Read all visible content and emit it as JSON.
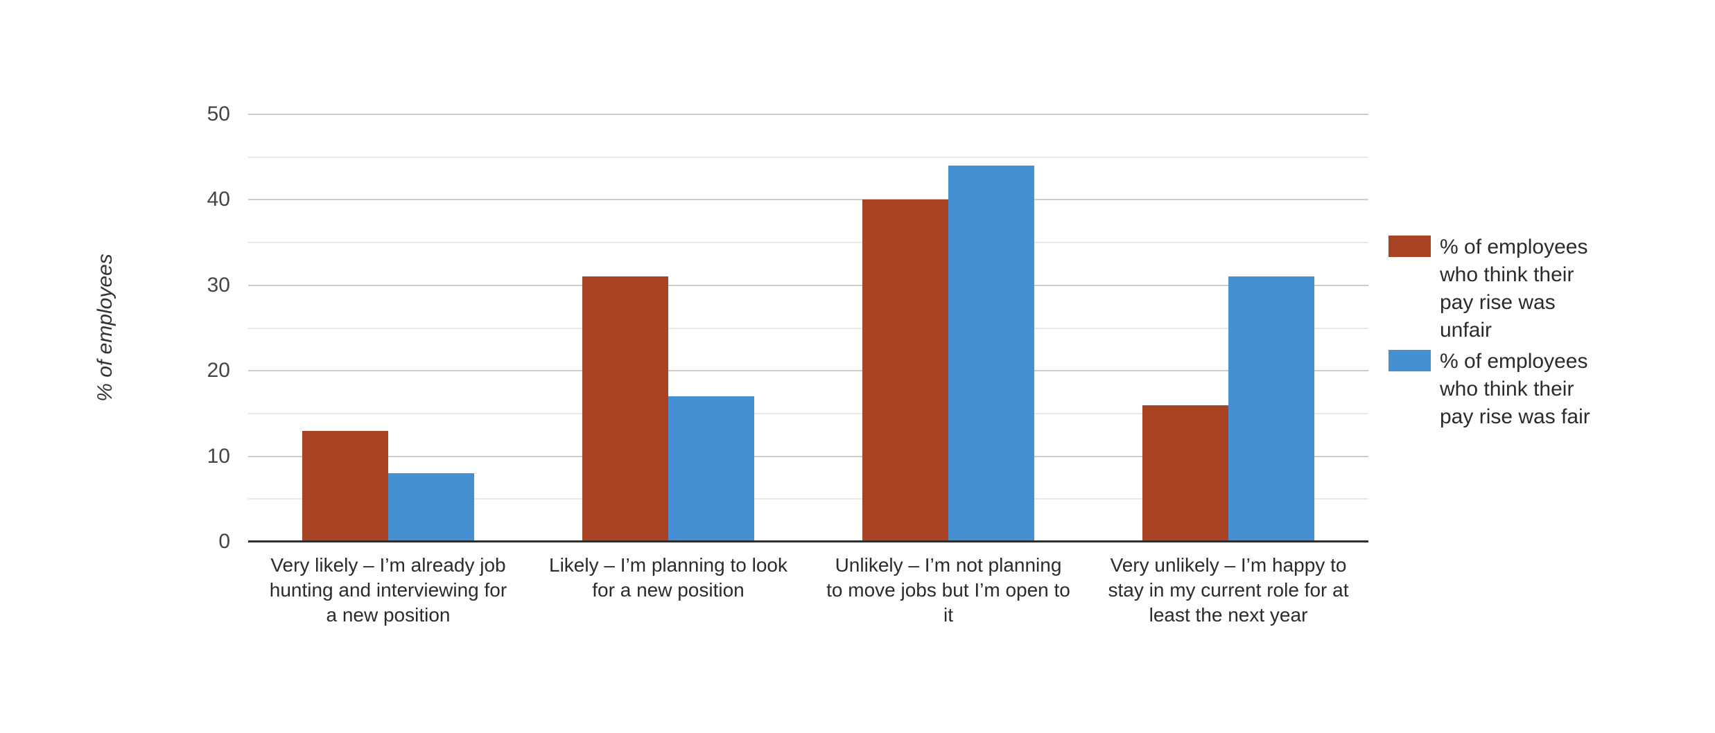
{
  "chart_data": {
    "type": "bar",
    "title": "",
    "ylabel": "% of employees",
    "xlabel": "",
    "ylim": [
      0,
      50
    ],
    "y_major_ticks": [
      "0",
      "10",
      "20",
      "30",
      "40",
      "50"
    ],
    "y_minor_gridlines": [
      5,
      15,
      25,
      35,
      45
    ],
    "grid": true,
    "legend_position": "right",
    "categories": [
      "Very likely – I’m already job hunting and interviewing for a new position",
      "Likely – I’m planning to look for a new position",
      "Unlikely – I’m not planning to move jobs but I’m open to it",
      "Very unlikely – I’m happy to stay in my current role for at least the next year"
    ],
    "category_display_lines": [
      [
        "Very likely – I’m already job",
        "hunting and interviewing for",
        "a new position"
      ],
      [
        "Likely – I’m planning to look",
        "for a new position"
      ],
      [
        "Unlikely – I’m not planning",
        "to move jobs but I’m open to",
        "it"
      ],
      [
        "Very unlikely – I’m happy to",
        "stay in my current role for at",
        "least the next year"
      ]
    ],
    "series": [
      {
        "name": "% of employees who think their pay rise was unfair",
        "color": "#A84324",
        "values": [
          13,
          31,
          40,
          16
        ]
      },
      {
        "name": "% of employees who think their pay rise was fair",
        "color": "#4490D2",
        "values": [
          8,
          17,
          44,
          31
        ]
      }
    ]
  },
  "legend": {
    "items": [
      {
        "swatch_color": "#A84324",
        "lines": [
          "% of employees",
          "who think their",
          "pay rise was",
          "unfair"
        ]
      },
      {
        "swatch_color": "#4490D2",
        "lines": [
          "% of employees",
          "who think their",
          "pay rise was fair"
        ]
      }
    ]
  },
  "colors": {
    "series_unfair": "#A84324",
    "series_fair": "#4490D2",
    "major_gridline": "#CCCCCC",
    "minor_gridline": "#E8E8E8",
    "axis_line": "#2D2D2D",
    "tick_text": "#444444",
    "label_text": "#2B2B2B",
    "background": "#FFFFFF"
  }
}
